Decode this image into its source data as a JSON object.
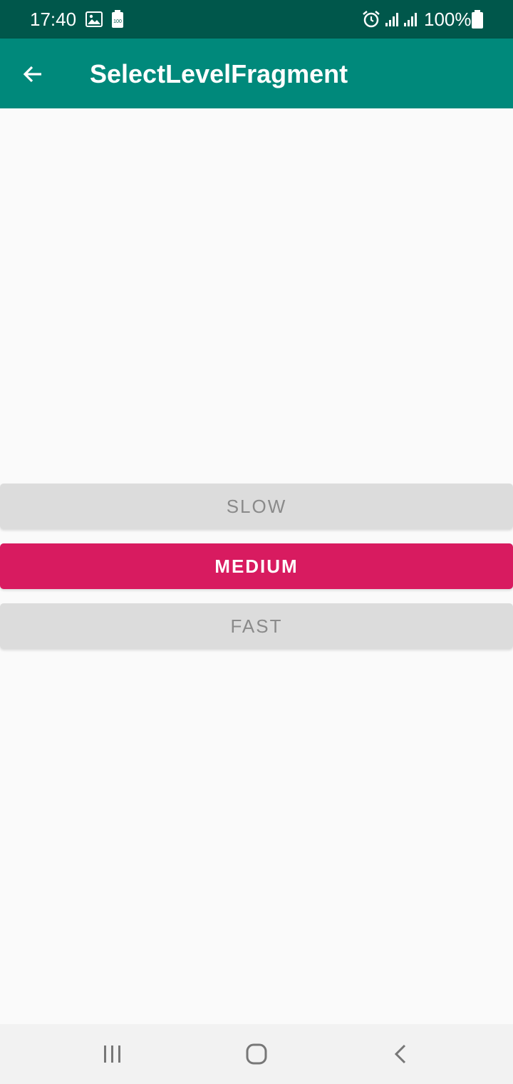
{
  "status_bar": {
    "time": "17:40",
    "battery_percent": "100%",
    "icons": [
      "image-icon",
      "battery-saver-icon",
      "alarm-icon",
      "signal-icon",
      "signal-icon",
      "battery-icon"
    ]
  },
  "app_bar": {
    "title": "SelectLevelFragment",
    "back_icon": "arrow-back-icon",
    "color": "#00897b",
    "status_color": "#00574b"
  },
  "levels": {
    "slow_label": "SLOW",
    "medium_label": "MEDIUM",
    "fast_label": "FAST",
    "selected": "MEDIUM",
    "selected_color": "#d81b60",
    "unselected_color": "#dcdcdc"
  },
  "nav_bar": {
    "recents_icon": "recents-icon",
    "home_icon": "home-icon",
    "back_icon": "back-chevron-icon"
  }
}
